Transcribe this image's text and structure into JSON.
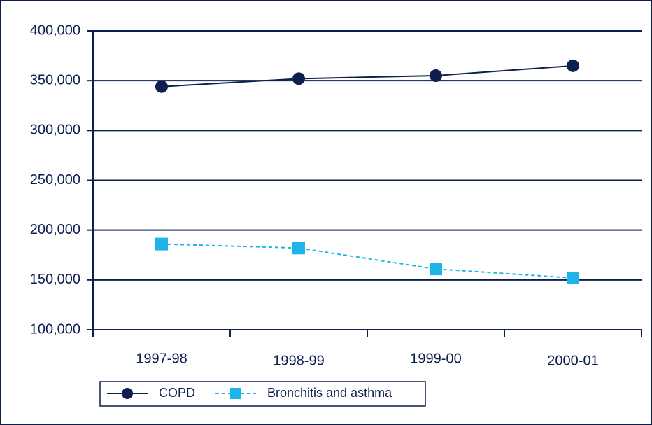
{
  "chart_data": {
    "type": "line",
    "categories": [
      "1997-98",
      "1998-99",
      "1999-00",
      "2000-01"
    ],
    "series": [
      {
        "name": "COPD",
        "color": "#0c1f4f",
        "marker": "circle",
        "dash": "solid",
        "values": [
          344000,
          352000,
          355000,
          365000
        ]
      },
      {
        "name": "Bronchitis and asthma",
        "color": "#1eb4ea",
        "marker": "square",
        "dash": "dashed",
        "values": [
          186000,
          182000,
          161000,
          152000
        ]
      }
    ],
    "ylim": [
      100000,
      400000
    ],
    "yticks": [
      {
        "value": 100000,
        "label": "100,000"
      },
      {
        "value": 150000,
        "label": "150,000"
      },
      {
        "value": 200000,
        "label": "200,000"
      },
      {
        "value": 250000,
        "label": "250,000"
      },
      {
        "value": 300000,
        "label": "300,000"
      },
      {
        "value": 350000,
        "label": "350,000"
      },
      {
        "value": 400000,
        "label": "400,000"
      }
    ],
    "grid": true,
    "legend": "bottom"
  }
}
